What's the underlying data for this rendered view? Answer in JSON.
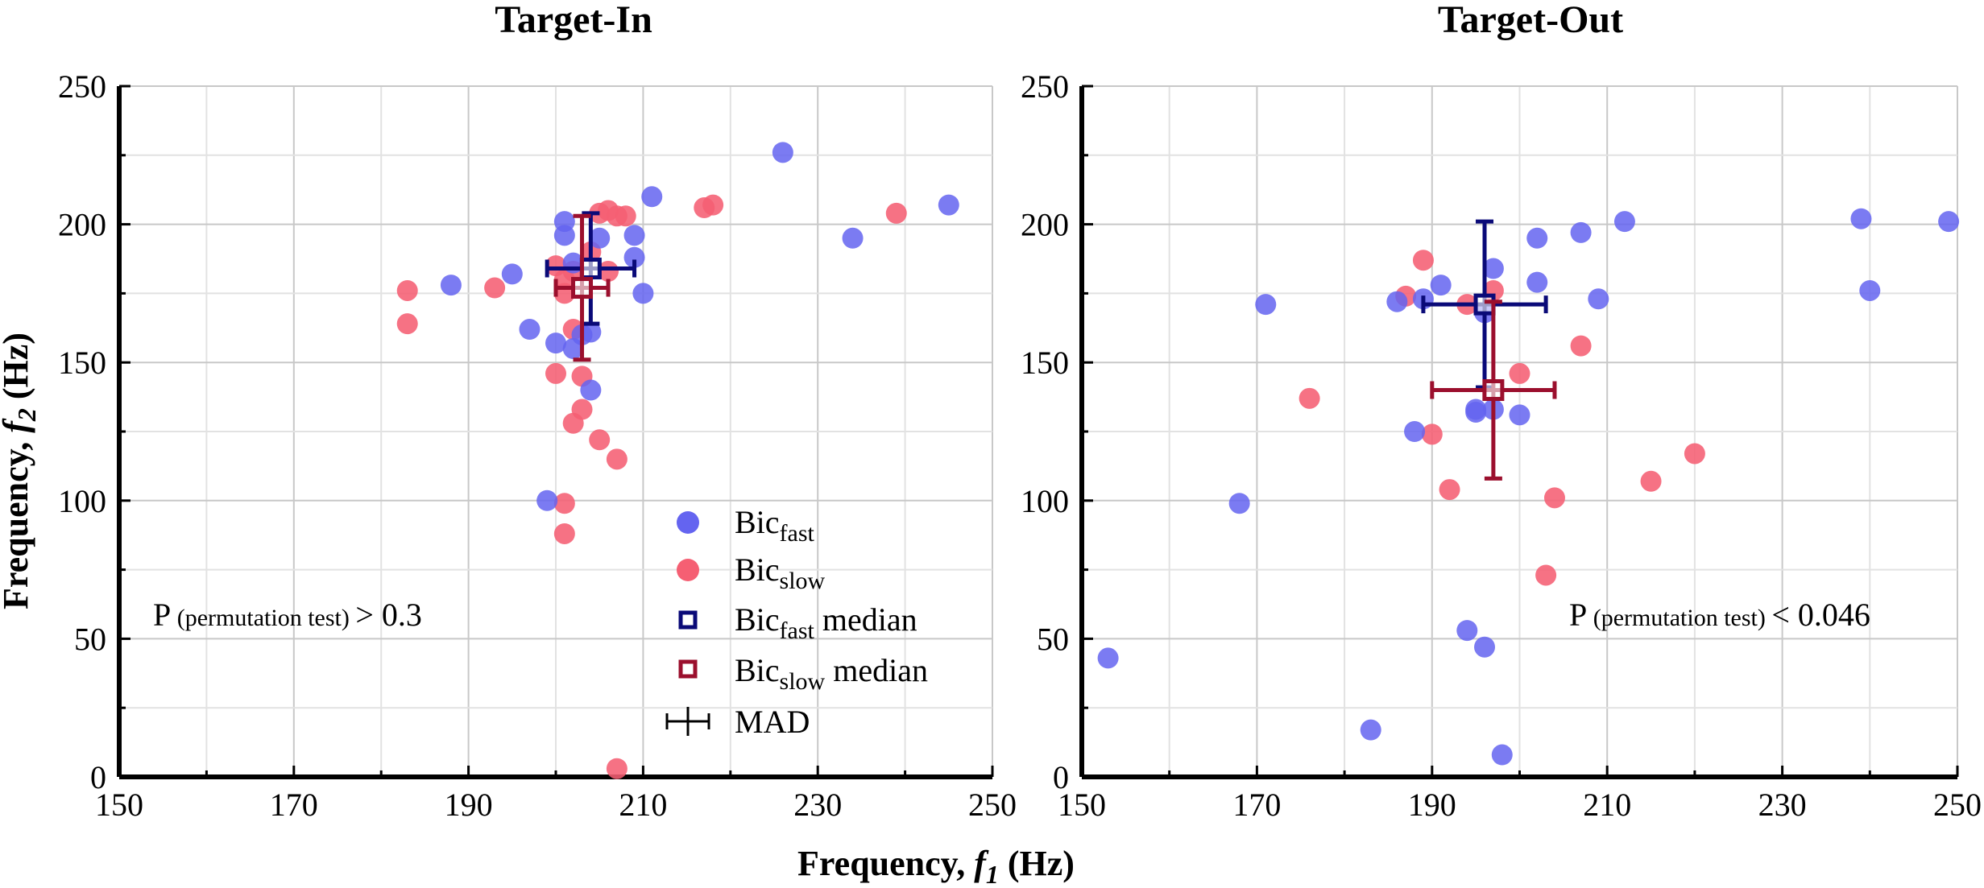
{
  "xlabel": {
    "main": "Frequency, ",
    "var": "f",
    "sub": "1",
    "unit": " (Hz)"
  },
  "ylabel": {
    "main": "Frequency, ",
    "var": "f",
    "sub": "2",
    "unit": " (Hz)"
  },
  "legend": {
    "fast": {
      "base": "Bic",
      "sub": "fast"
    },
    "slow": {
      "base": "Bic",
      "sub": "slow"
    },
    "fast_median": {
      "base": "Bic",
      "sub": "fast",
      "suffix": " median"
    },
    "slow_median": {
      "base": "Bic",
      "sub": "slow",
      "suffix": " median"
    },
    "mad": "MAD"
  },
  "colors": {
    "fast": "#6464f0",
    "slow": "#f55f73",
    "fast_median": "#0a0a78",
    "slow_median": "#9b0f2d"
  },
  "chart_data": [
    {
      "type": "scatter",
      "title": "Target-In",
      "xlim": [
        150,
        250
      ],
      "ylim": [
        0,
        250
      ],
      "xticks": [
        150,
        170,
        190,
        210,
        230,
        250
      ],
      "yticks": [
        0,
        50,
        100,
        150,
        200,
        250
      ],
      "grid": true,
      "annotation": {
        "p": "P",
        "sub": " (permutation test) ",
        "rest": "> 0.3"
      },
      "fast": {
        "x": [
          188,
          195,
          197,
          200,
          201,
          201,
          202,
          202,
          203,
          204,
          204,
          205,
          209,
          209,
          210,
          211,
          226,
          234,
          245,
          199
        ],
        "y": [
          178,
          182,
          162,
          157,
          201,
          196,
          155,
          186,
          160,
          161,
          140,
          195,
          196,
          188,
          175,
          210,
          226,
          195,
          207,
          100
        ]
      },
      "slow": {
        "x": [
          183,
          183,
          193,
          200,
          200,
          201,
          201,
          202,
          202,
          203,
          203,
          205,
          205,
          206,
          207,
          208,
          207,
          217,
          218,
          239,
          207,
          201,
          201,
          202,
          206,
          204
        ],
        "y": [
          176,
          164,
          177,
          185,
          146,
          99,
          88,
          128,
          162,
          145,
          133,
          122,
          204,
          205,
          203,
          203,
          115,
          206,
          207,
          204,
          3,
          180,
          175,
          183,
          183,
          190
        ]
      },
      "fast_median": {
        "x": 204,
        "y": 184,
        "xerr": 5,
        "yerr": 20
      },
      "slow_median": {
        "x": 203,
        "y": 177,
        "xerr": 3,
        "yerr": 26
      }
    },
    {
      "type": "scatter",
      "title": "Target-Out",
      "xlim": [
        150,
        250
      ],
      "ylim": [
        0,
        250
      ],
      "xticks": [
        150,
        170,
        190,
        210,
        230,
        250
      ],
      "yticks": [
        0,
        50,
        100,
        150,
        200,
        250
      ],
      "grid": true,
      "annotation": {
        "p": "P",
        "sub": " (permutation test) ",
        "rest": "< 0.046"
      },
      "fast": {
        "x": [
          153,
          168,
          171,
          183,
          186,
          188,
          189,
          191,
          194,
          195,
          195,
          196,
          196,
          197,
          197,
          198,
          200,
          202,
          202,
          207,
          209,
          212,
          239,
          240,
          249
        ],
        "y": [
          43,
          99,
          171,
          17,
          172,
          125,
          173,
          178,
          53,
          133,
          132,
          168,
          47,
          184,
          133,
          8,
          131,
          179,
          195,
          197,
          173,
          201,
          202,
          176,
          201
        ]
      },
      "slow": {
        "x": [
          176,
          187,
          189,
          190,
          192,
          194,
          197,
          200,
          203,
          204,
          207,
          215,
          220
        ],
        "y": [
          137,
          174,
          187,
          124,
          104,
          171,
          176,
          146,
          73,
          101,
          156,
          107,
          117
        ]
      },
      "fast_median": {
        "x": 196,
        "y": 171,
        "xerr": 7,
        "yerr": 30
      },
      "slow_median": {
        "x": 197,
        "y": 140,
        "xerr": 7,
        "yerr": 32
      }
    }
  ]
}
